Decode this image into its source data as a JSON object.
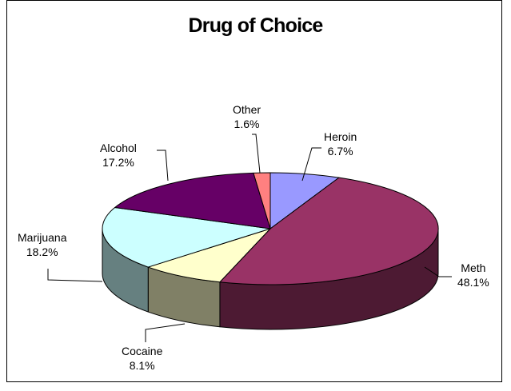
{
  "chart_data": {
    "type": "pie",
    "title": "Drug of Choice",
    "slices": [
      {
        "name": "Heroin",
        "label": "Heroin",
        "value_label": "6.7%",
        "value": 6.7,
        "color": "#9999ff",
        "side_color": "#4c4c80"
      },
      {
        "name": "Meth",
        "label": "Meth",
        "value_label": "48.1%",
        "value": 48.1,
        "color": "#993366",
        "side_color": "#4d1a33"
      },
      {
        "name": "Cocaine",
        "label": "Cocaine",
        "value_label": "8.1%",
        "value": 8.1,
        "color": "#ffffcc",
        "side_color": "#808066"
      },
      {
        "name": "Marijuana",
        "label": "Marijuana",
        "value_label": "18.2%",
        "value": 18.2,
        "color": "#ccffff",
        "side_color": "#668080"
      },
      {
        "name": "Alcohol",
        "label": "Alcohol",
        "value_label": "17.2%",
        "value": 17.2,
        "color": "#660066",
        "side_color": "#330033"
      },
      {
        "name": "Other",
        "label": "Other",
        "value_label": "1.6%",
        "value": 1.6,
        "color": "#ff8080",
        "side_color": "#804040"
      }
    ],
    "legend": "none"
  }
}
